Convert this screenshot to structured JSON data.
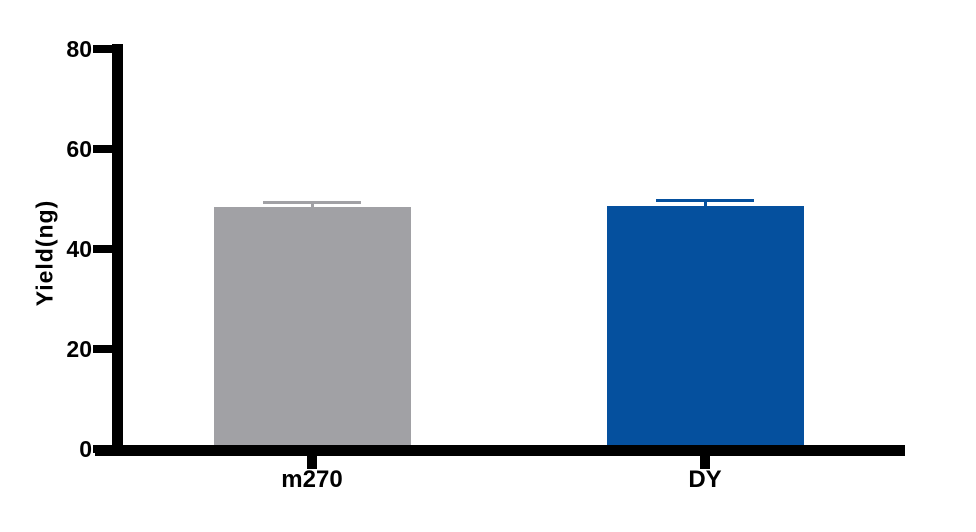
{
  "chart_data": {
    "type": "bar",
    "title": "",
    "categories": [
      "m270",
      "DY"
    ],
    "values": [
      48.4,
      48.7
    ],
    "errors": [
      0.9,
      1.0
    ],
    "error_direction": "upper-only",
    "bar_colors": [
      "#a1a1a5",
      "#05509e"
    ],
    "xlabel": "",
    "ylabel": "Yield(ng)",
    "ylim": [
      0,
      80
    ],
    "yticks": [
      0,
      20,
      40,
      60,
      80
    ],
    "grid": false,
    "legend": "none",
    "background": "#ffffff",
    "axis_color": "#000000"
  }
}
